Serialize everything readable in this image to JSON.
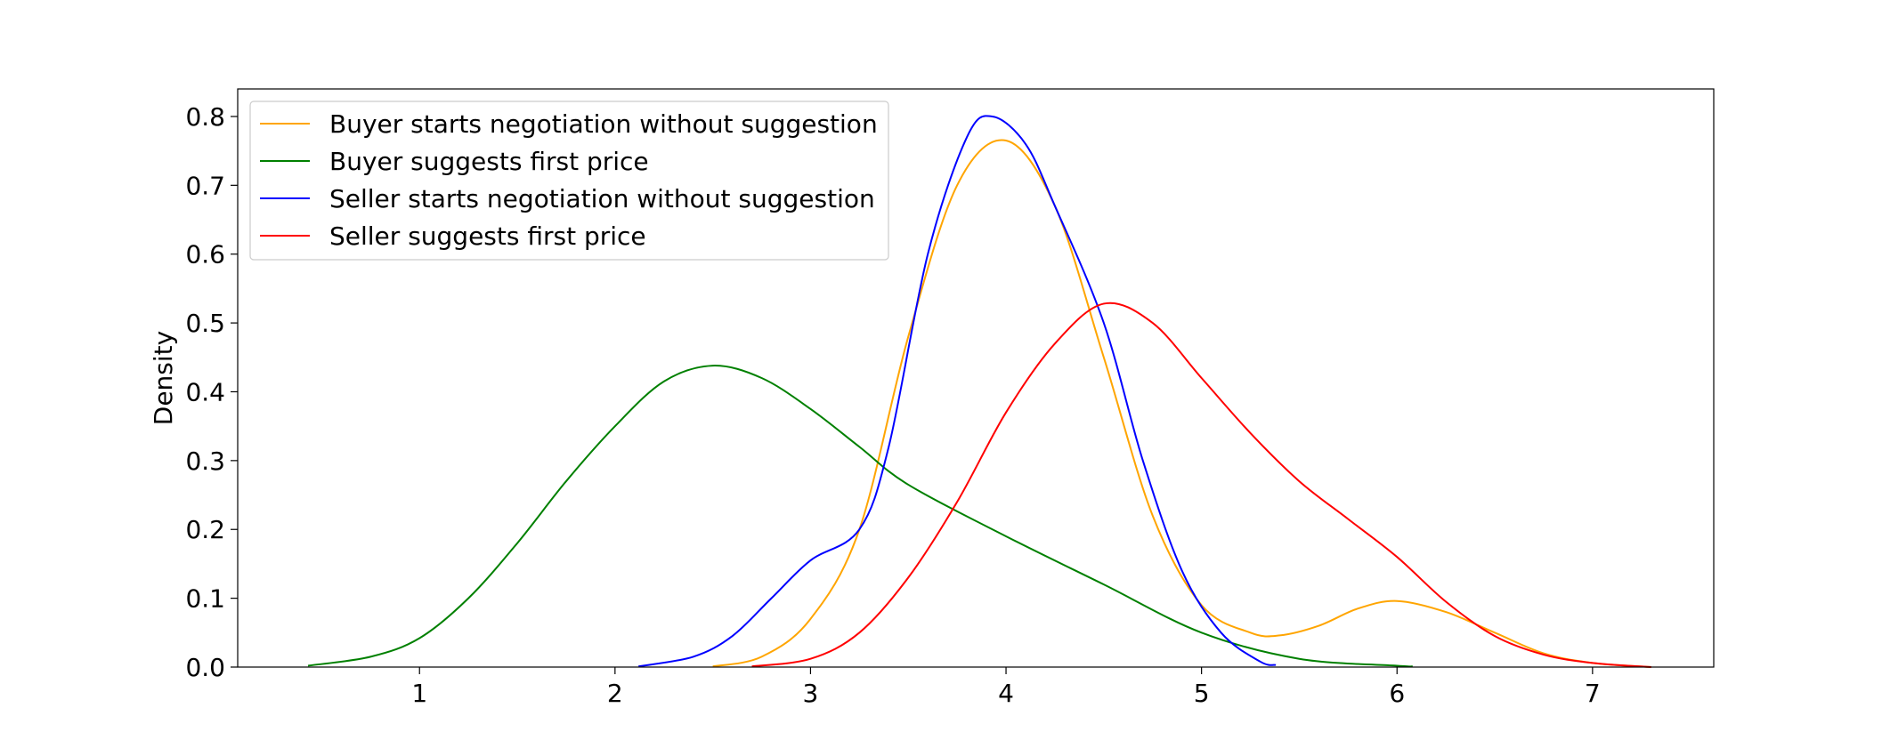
{
  "chart_data": {
    "type": "line",
    "title": "",
    "xlabel": "",
    "ylabel": "Density",
    "xlim": [
      0.07,
      7.62
    ],
    "ylim": [
      0.0,
      0.84
    ],
    "x_ticks": [
      1,
      2,
      3,
      4,
      5,
      6,
      7
    ],
    "y_ticks": [
      0.0,
      0.1,
      0.2,
      0.3,
      0.4,
      0.5,
      0.6,
      0.7,
      0.8
    ],
    "y_tick_labels": [
      "0.0",
      "0.1",
      "0.2",
      "0.3",
      "0.4",
      "0.5",
      "0.6",
      "0.7",
      "0.8"
    ],
    "grid": false,
    "legend_position": "top-left",
    "series": [
      {
        "name": "Buyer starts negotiation without suggestion",
        "color": "#FFA500",
        "x": [
          2.5,
          2.75,
          3.0,
          3.25,
          3.5,
          3.75,
          4.0,
          4.25,
          4.5,
          4.75,
          5.0,
          5.25,
          5.4,
          5.6,
          5.8,
          6.0,
          6.25,
          6.5,
          6.75,
          7.0,
          7.3
        ],
        "y": [
          0.001,
          0.015,
          0.07,
          0.2,
          0.48,
          0.7,
          0.765,
          0.67,
          0.45,
          0.22,
          0.09,
          0.05,
          0.046,
          0.06,
          0.085,
          0.096,
          0.08,
          0.05,
          0.02,
          0.006,
          0.0
        ]
      },
      {
        "name": "Buyer suggests first price",
        "color": "#008000",
        "x": [
          0.43,
          0.75,
          1.0,
          1.25,
          1.5,
          1.75,
          2.0,
          2.25,
          2.5,
          2.75,
          3.0,
          3.25,
          3.5,
          4.0,
          4.5,
          5.0,
          5.5,
          6.0,
          6.08
        ],
        "y": [
          0.002,
          0.015,
          0.042,
          0.1,
          0.18,
          0.27,
          0.35,
          0.415,
          0.438,
          0.42,
          0.375,
          0.32,
          0.265,
          0.19,
          0.12,
          0.05,
          0.012,
          0.002,
          0.001
        ]
      },
      {
        "name": "Seller starts negotiation without suggestion",
        "color": "#0000FF",
        "x": [
          2.12,
          2.4,
          2.6,
          2.8,
          3.0,
          3.25,
          3.4,
          3.6,
          3.8,
          3.93,
          4.1,
          4.25,
          4.5,
          4.7,
          4.9,
          5.1,
          5.3,
          5.38
        ],
        "y": [
          0.001,
          0.015,
          0.045,
          0.1,
          0.155,
          0.2,
          0.32,
          0.6,
          0.77,
          0.8,
          0.76,
          0.67,
          0.5,
          0.3,
          0.14,
          0.05,
          0.008,
          0.003
        ]
      },
      {
        "name": "Seller suggests first price",
        "color": "#FF0000",
        "x": [
          2.7,
          3.0,
          3.25,
          3.5,
          3.75,
          4.0,
          4.25,
          4.5,
          4.75,
          5.0,
          5.25,
          5.5,
          5.75,
          6.0,
          6.25,
          6.5,
          6.75,
          7.0,
          7.3
        ],
        "y": [
          0.001,
          0.012,
          0.05,
          0.13,
          0.24,
          0.37,
          0.47,
          0.528,
          0.5,
          0.42,
          0.34,
          0.27,
          0.215,
          0.16,
          0.095,
          0.045,
          0.018,
          0.006,
          0.0
        ]
      }
    ]
  }
}
